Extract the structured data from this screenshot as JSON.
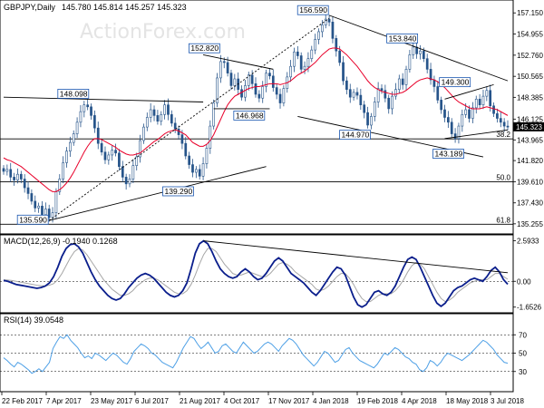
{
  "watermark": "ActionForex.com",
  "colors": {
    "candle": "#26548a",
    "ma": "#e8002a",
    "macd": "#0a1e8c",
    "signal": "#a6a6a6",
    "rsi": "#4ea0e6",
    "axis": "#000000",
    "label_box": "#1a56b0"
  },
  "chart_data": [
    {
      "type": "candlestick",
      "title": "GBPJPY,Daily",
      "ohlc_text": "145.780 145.814 145.257 145.323",
      "current_price": "145.323",
      "yticks": [
        "157.150",
        "154.955",
        "152.760",
        "150.565",
        "148.385",
        "146.125",
        "143.965",
        "141.820",
        "139.610",
        "137.430",
        "135.255"
      ],
      "ylim": [
        134.3,
        158.3
      ],
      "fib_levels": [
        {
          "label": "38.2",
          "value": 144.07
        },
        {
          "label": "50.0",
          "value": 139.61
        },
        {
          "label": "61.8",
          "value": 135.21
        }
      ],
      "annotations": [
        {
          "text": "148.098",
          "x": "Apr 2017",
          "y": 148.098
        },
        {
          "text": "135.590",
          "x": "Apr 2017",
          "y": 135.59
        },
        {
          "text": "152.820",
          "x": "Aug 2017",
          "y": 152.82
        },
        {
          "text": "146.968",
          "x": "Sep 2017",
          "y": 146.968
        },
        {
          "text": "139.290",
          "x": "Aug 2017",
          "y": 139.29
        },
        {
          "text": "156.590",
          "x": "Jan 2018",
          "y": 156.59
        },
        {
          "text": "153.840",
          "x": "Apr 2018",
          "y": 153.84
        },
        {
          "text": "144.970",
          "x": "Feb 2018",
          "y": 144.97
        },
        {
          "text": "143.189",
          "x": "May 2018",
          "y": 143.189
        },
        {
          "text": "149.300",
          "x": "Jun 2018",
          "y": 149.3
        }
      ],
      "series": [
        {
          "name": "close",
          "values": [
            140.7,
            140.9,
            140.1,
            139.8,
            140.4,
            139.9,
            139.0,
            138.4,
            137.6,
            136.9,
            137.1,
            136.2,
            136.8,
            135.9,
            136.4,
            138.6,
            139.9,
            141.6,
            142.8,
            143.7,
            144.6,
            145.8,
            146.9,
            147.6,
            147.4,
            146.5,
            145.2,
            143.6,
            142.7,
            141.9,
            142.4,
            142.9,
            142.6,
            141.2,
            140.1,
            139.4,
            139.9,
            141.3,
            142.2,
            143.9,
            145.3,
            146.3,
            147.1,
            146.5,
            145.9,
            146.6,
            147.6,
            146.6,
            145.7,
            145.1,
            144.5,
            143.6,
            142.3,
            141.4,
            140.6,
            140.9,
            140.2,
            141.5,
            143.1,
            145.4,
            147.8,
            150.4,
            152.1,
            152.0,
            150.9,
            149.6,
            150.3,
            149.2,
            148.4,
            149.6,
            150.7,
            149.8,
            148.7,
            148.3,
            149.5,
            150.9,
            150.6,
            149.4,
            148.7,
            147.8,
            149.3,
            150.5,
            151.6,
            153.1,
            152.7,
            151.3,
            151.6,
            152.4,
            153.3,
            154.4,
            155.2,
            155.9,
            156.5,
            156.2,
            154.5,
            153.2,
            152.0,
            150.1,
            149.2,
            148.4,
            148.9,
            148.6,
            147.6,
            146.8,
            145.5,
            146.4,
            147.9,
            149.3,
            149.1,
            148.3,
            147.2,
            148.5,
            149.2,
            150.3,
            149.7,
            151.3,
            152.8,
            153.6,
            152.9,
            153.2,
            152.4,
            151.3,
            150.2,
            149.5,
            148.1,
            147.1,
            146.3,
            145.8,
            144.6,
            144.1,
            145.4,
            146.6,
            147.1,
            146.2,
            147.3,
            148.2,
            147.6,
            148.5,
            149.1,
            147.5,
            146.7,
            146.2,
            145.8,
            145.4,
            145.3
          ]
        },
        {
          "name": "MA",
          "values": [
            142.1,
            141.9,
            141.8,
            141.6,
            141.4,
            141.2,
            140.9,
            140.6,
            140.3,
            140.0,
            139.7,
            139.4,
            139.1,
            138.8,
            138.6,
            138.6,
            138.8,
            139.1,
            139.5,
            140.0,
            140.6,
            141.3,
            142.0,
            142.7,
            143.3,
            143.8,
            144.1,
            144.1,
            144.0,
            143.8,
            143.6,
            143.4,
            143.2,
            142.9,
            142.7,
            142.5,
            142.4,
            142.4,
            142.5,
            142.6,
            142.9,
            143.2,
            143.5,
            143.8,
            144.0,
            144.3,
            144.6,
            144.8,
            144.9,
            145.0,
            144.9,
            144.7,
            144.5,
            144.1,
            143.7,
            143.5,
            143.3,
            143.3,
            143.5,
            143.9,
            144.5,
            145.3,
            146.1,
            146.9,
            147.6,
            148.1,
            148.5,
            148.7,
            148.9,
            149.1,
            149.3,
            149.4,
            149.5,
            149.5,
            149.6,
            149.7,
            149.8,
            149.8,
            149.8,
            149.7,
            149.8,
            149.9,
            150.1,
            150.4,
            150.7,
            150.9,
            151.1,
            151.4,
            151.7,
            152.0,
            152.4,
            152.8,
            153.1,
            153.4,
            153.5,
            153.5,
            153.4,
            153.1,
            152.8,
            152.4,
            152.0,
            151.6,
            151.1,
            150.6,
            150.1,
            149.7,
            149.4,
            149.2,
            149.0,
            148.9,
            148.8,
            148.7,
            148.7,
            148.8,
            148.9,
            149.1,
            149.4,
            149.7,
            150.0,
            150.2,
            150.3,
            150.4,
            150.3,
            150.2,
            150.0,
            149.7,
            149.4,
            149.0,
            148.6,
            148.2,
            147.9,
            147.7,
            147.5,
            147.3,
            147.2,
            147.2,
            147.2,
            147.3,
            147.4,
            147.3,
            147.2,
            147.1,
            146.9,
            146.7,
            146.5
          ]
        }
      ],
      "xticks": [
        "22 Feb 2017",
        "7 Apr 2017",
        "23 May 2017",
        "6 Jul 2017",
        "21 Aug 2017",
        "4 Oct 2017",
        "17 Nov 2017",
        "4 Jan 2018",
        "19 Feb 2018",
        "4 Apr 2018",
        "18 May 2018",
        "3 Jul 2018"
      ]
    },
    {
      "type": "line",
      "title": "MACD(12,26,9) -0.1940 0.1268",
      "yticks": [
        "2.5933",
        "0.00",
        "-1.6526"
      ],
      "ylim": [
        -1.9,
        2.8
      ],
      "series": [
        {
          "name": "MACD",
          "values": [
            0.05,
            0.0,
            -0.1,
            -0.2,
            -0.25,
            -0.3,
            -0.35,
            -0.4,
            -0.45,
            -0.4,
            -0.3,
            -0.1,
            0.3,
            0.9,
            1.6,
            2.1,
            2.35,
            2.4,
            2.2,
            1.8,
            1.2,
            0.6,
            0.1,
            -0.3,
            -0.6,
            -0.9,
            -1.1,
            -1.2,
            -1.1,
            -0.8,
            -0.4,
            -0.1,
            0.2,
            0.4,
            0.5,
            0.4,
            0.2,
            -0.1,
            -0.4,
            -0.7,
            -0.9,
            -1.0,
            -0.9,
            -0.6,
            -0.1,
            0.8,
            1.8,
            2.4,
            2.59,
            2.4,
            1.9,
            1.3,
            0.8,
            0.5,
            0.3,
            0.2,
            0.3,
            0.6,
            0.8,
            0.6,
            0.3,
            0.1,
            0.2,
            0.5,
            0.9,
            1.3,
            1.5,
            1.3,
            0.9,
            0.5,
            0.3,
            0.1,
            -0.1,
            -0.4,
            -0.7,
            -0.9,
            -0.6,
            -0.2,
            0.2,
            0.6,
            0.9,
            0.8,
            0.4,
            -0.3,
            -1.0,
            -1.5,
            -1.65,
            -1.5,
            -1.1,
            -0.7,
            -0.6,
            -0.8,
            -0.9,
            -0.7,
            -0.3,
            0.3,
            0.9,
            1.4,
            1.55,
            1.4,
            0.9,
            0.3,
            -0.3,
            -0.9,
            -1.4,
            -1.6,
            -1.4,
            -1.0,
            -0.6,
            -0.4,
            -0.3,
            -0.1,
            0.1,
            0.2,
            0.1,
            0.0,
            0.3,
            0.7,
            0.9,
            0.6,
            0.1,
            -0.19
          ]
        },
        {
          "name": "Signal",
          "values": [
            0.1,
            0.08,
            0.05,
            0.0,
            -0.05,
            -0.1,
            -0.15,
            -0.2,
            -0.25,
            -0.28,
            -0.3,
            -0.25,
            -0.15,
            0.1,
            0.5,
            1.0,
            1.5,
            1.9,
            2.1,
            2.0,
            1.7,
            1.3,
            0.9,
            0.5,
            0.1,
            -0.2,
            -0.5,
            -0.7,
            -0.9,
            -0.9,
            -0.8,
            -0.6,
            -0.3,
            -0.1,
            0.1,
            0.2,
            0.2,
            0.1,
            -0.1,
            -0.3,
            -0.5,
            -0.7,
            -0.8,
            -0.8,
            -0.6,
            -0.2,
            0.4,
            1.1,
            1.7,
            2.1,
            2.1,
            1.9,
            1.5,
            1.1,
            0.8,
            0.5,
            0.4,
            0.4,
            0.5,
            0.6,
            0.5,
            0.4,
            0.3,
            0.3,
            0.5,
            0.8,
            1.1,
            1.2,
            1.1,
            0.9,
            0.6,
            0.4,
            0.2,
            0.0,
            -0.2,
            -0.5,
            -0.6,
            -0.5,
            -0.3,
            0.0,
            0.3,
            0.5,
            0.5,
            0.2,
            -0.2,
            -0.7,
            -1.1,
            -1.3,
            -1.3,
            -1.1,
            -0.9,
            -0.8,
            -0.8,
            -0.8,
            -0.6,
            -0.3,
            0.1,
            0.6,
            1.0,
            1.2,
            1.1,
            0.8,
            0.3,
            -0.2,
            -0.7,
            -1.1,
            -1.3,
            -1.2,
            -1.0,
            -0.7,
            -0.5,
            -0.3,
            -0.1,
            0.0,
            0.1,
            0.1,
            0.1,
            0.3,
            0.5,
            0.5,
            0.3,
            0.13
          ]
        }
      ]
    },
    {
      "type": "line",
      "title": "RSI(14) 39.0548",
      "yticks": [
        "70",
        "50",
        "30"
      ],
      "ylim": [
        10,
        90
      ],
      "series": [
        {
          "name": "RSI",
          "values": [
            45,
            42,
            38,
            35,
            40,
            38,
            35,
            32,
            28,
            30,
            33,
            30,
            35,
            40,
            55,
            62,
            68,
            66,
            70,
            64,
            60,
            56,
            50,
            45,
            47,
            44,
            50,
            48,
            45,
            42,
            46,
            50,
            48,
            44,
            40,
            38,
            44,
            52,
            56,
            60,
            58,
            55,
            50,
            48,
            44,
            40,
            38,
            36,
            34,
            40,
            48,
            56,
            62,
            68,
            66,
            60,
            55,
            58,
            62,
            56,
            50,
            52,
            58,
            60,
            56,
            52,
            50,
            56,
            62,
            58,
            54,
            50,
            52,
            56,
            60,
            62,
            60,
            56,
            52,
            58,
            62,
            66,
            64,
            60,
            54,
            48,
            44,
            40,
            36,
            40,
            46,
            52,
            50,
            45,
            40,
            42,
            48,
            54,
            56,
            50,
            46,
            42,
            40,
            38,
            36,
            34,
            38,
            44,
            50,
            48,
            52,
            56,
            54,
            50,
            46,
            44,
            40,
            38,
            32,
            30,
            34,
            42,
            40,
            36,
            40,
            46,
            50,
            48,
            46,
            44,
            42,
            45,
            48,
            52,
            56,
            60,
            64,
            62,
            58,
            54,
            48,
            44,
            40,
            39
          ]
        }
      ]
    }
  ]
}
